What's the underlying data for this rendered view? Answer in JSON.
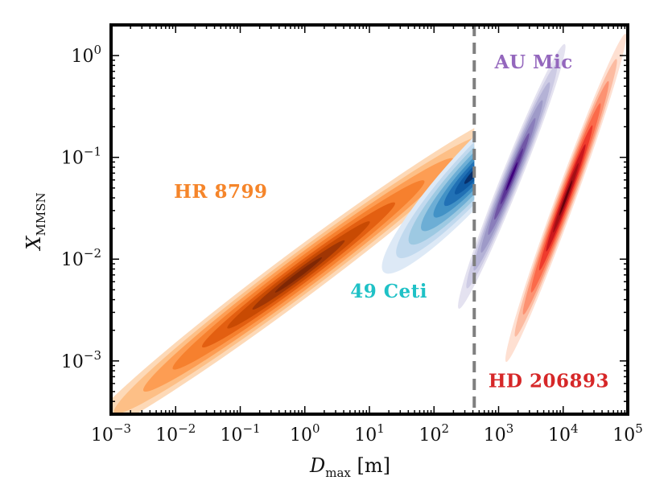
{
  "chart_data": {
    "type": "contour",
    "xscale": "log",
    "yscale": "log",
    "xlim": [
      0.001,
      100000
    ],
    "ylim": [
      0.0003,
      2
    ],
    "xlabel_symbol": "D",
    "xlabel_sub": "max",
    "xlabel_unit": " [m]",
    "ylabel_symbol": "X",
    "ylabel_sub": "MMSN",
    "x_ticks": [
      {
        "base": "10",
        "exp": "−3",
        "value": 0.001
      },
      {
        "base": "10",
        "exp": "−2",
        "value": 0.01
      },
      {
        "base": "10",
        "exp": "−1",
        "value": 0.1
      },
      {
        "base": "10",
        "exp": "0",
        "value": 1
      },
      {
        "base": "10",
        "exp": "1",
        "value": 10
      },
      {
        "base": "10",
        "exp": "2",
        "value": 100
      },
      {
        "base": "10",
        "exp": "3",
        "value": 1000
      },
      {
        "base": "10",
        "exp": "4",
        "value": 10000
      },
      {
        "base": "10",
        "exp": "5",
        "value": 100000
      }
    ],
    "y_ticks": [
      {
        "base": "10",
        "exp": "−3",
        "value": 0.001
      },
      {
        "base": "10",
        "exp": "−2",
        "value": 0.01
      },
      {
        "base": "10",
        "exp": "−1",
        "value": 0.1
      },
      {
        "base": "10",
        "exp": "0",
        "value": 1
      }
    ],
    "vline": {
      "x": 420,
      "style": "dashed",
      "color": "#7f7f7f"
    },
    "series": [
      {
        "name": "HR 8799",
        "palette": [
          "#fdd9b7",
          "#fdbf86",
          "#fd9d53",
          "#f6802e",
          "#e35f11",
          "#c84a03",
          "#a03604",
          "#7f2704"
        ],
        "center": [
          0.8,
          0.007
        ],
        "corr": 0.985,
        "sigma_logx": 1.3,
        "sigma_logy": 0.62,
        "truncate_x_max": 420,
        "label_color": "#f5852a",
        "label_pos": [
          0.05,
          0.04
        ]
      },
      {
        "name": "49 Ceti",
        "palette": [
          "#dde9f6",
          "#c1d9ee",
          "#9dc9e2",
          "#6daed5",
          "#4292c6",
          "#2171b5",
          "#0f5aa3",
          "#08306b"
        ],
        "center": [
          420,
          0.07
        ],
        "corr": 0.93,
        "sigma_logx": 0.55,
        "sigma_logy": 0.38,
        "truncate_x_max": 420,
        "label_color": "#1fc1c6",
        "label_pos": [
          20,
          0.0042
        ]
      },
      {
        "name": "AU Mic",
        "palette": [
          "#e4e2f0",
          "#cdcbe4",
          "#b4b2d6",
          "#9e9ac8",
          "#8a7ebb",
          "#7157a6",
          "#5b3596",
          "#3f007d"
        ],
        "center": [
          1600,
          0.065
        ],
        "corr": 0.98,
        "sigma_logx": 0.32,
        "sigma_logy": 0.5,
        "truncate_x_max": null,
        "label_color": "#9467bd",
        "label_pos": [
          3500,
          0.75
        ]
      },
      {
        "name": "HD 206893",
        "palette": [
          "#fee0d2",
          "#fcbba1",
          "#fc9272",
          "#fb6a4a",
          "#ef3b2c",
          "#cb181d",
          "#a50f15",
          "#67000d"
        ],
        "center": [
          11000,
          0.04
        ],
        "corr": 0.985,
        "sigma_logx": 0.36,
        "sigma_logy": 0.62,
        "truncate_x_max": null,
        "label_color": "#d62728",
        "label_pos": [
          6000,
          0.00055
        ]
      }
    ]
  }
}
